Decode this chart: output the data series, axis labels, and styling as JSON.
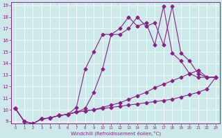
{
  "xlabel": "Windchill (Refroidissement éolien,°C)",
  "bg_color": "#cce8e8",
  "line_color": "#882288",
  "grid_color": "#ffffff",
  "xmin": 0,
  "xmax": 23,
  "ymin": 9,
  "ymax": 19,
  "xticks": [
    0,
    1,
    2,
    3,
    4,
    5,
    6,
    7,
    8,
    9,
    10,
    11,
    12,
    13,
    14,
    15,
    16,
    17,
    18,
    19,
    20,
    21,
    22,
    23
  ],
  "yticks": [
    9,
    10,
    11,
    12,
    13,
    14,
    15,
    16,
    17,
    18,
    19
  ],
  "line1_x": [
    0,
    1,
    2,
    3,
    4,
    5,
    6,
    7,
    8,
    9,
    10,
    11,
    12,
    13,
    14,
    15,
    16,
    17,
    18,
    19,
    20,
    21,
    22,
    23
  ],
  "line1_y": [
    10.1,
    9.0,
    8.8,
    9.2,
    9.3,
    9.5,
    9.6,
    9.8,
    9.9,
    10.0,
    10.1,
    10.2,
    10.3,
    10.4,
    10.5,
    10.6,
    10.7,
    10.8,
    10.9,
    11.1,
    11.3,
    11.5,
    11.8,
    12.8
  ],
  "line2_x": [
    0,
    1,
    2,
    3,
    4,
    5,
    6,
    7,
    8,
    9,
    10,
    11,
    12,
    13,
    14,
    15,
    16,
    17,
    18,
    19,
    20,
    21,
    22,
    23
  ],
  "line2_y": [
    10.1,
    9.0,
    8.8,
    9.2,
    9.3,
    9.5,
    9.6,
    9.8,
    9.9,
    10.0,
    10.2,
    10.4,
    10.6,
    10.9,
    11.2,
    11.5,
    11.9,
    12.2,
    12.5,
    12.8,
    13.1,
    13.4,
    12.8,
    12.8
  ],
  "line3_x": [
    0,
    1,
    2,
    3,
    4,
    5,
    6,
    7,
    8,
    9,
    10,
    11,
    12,
    13,
    14,
    15,
    16,
    17,
    18,
    19,
    20,
    21,
    22,
    23
  ],
  "line3_y": [
    10.1,
    9.0,
    8.8,
    9.2,
    9.3,
    9.5,
    9.6,
    9.8,
    10.1,
    11.5,
    13.5,
    16.5,
    16.5,
    17.0,
    18.0,
    17.2,
    17.5,
    15.6,
    18.9,
    14.9,
    14.2,
    13.1,
    12.8,
    12.8
  ],
  "line4_x": [
    0,
    1,
    2,
    3,
    4,
    5,
    6,
    7,
    8,
    9,
    10,
    11,
    12,
    13,
    14,
    15,
    16,
    17,
    18,
    19,
    20,
    21,
    22,
    23
  ],
  "line4_y": [
    10.1,
    9.0,
    8.8,
    9.2,
    9.3,
    9.5,
    9.6,
    10.2,
    13.5,
    15.0,
    16.5,
    16.5,
    17.0,
    18.0,
    17.2,
    17.5,
    15.6,
    18.9,
    14.9,
    14.2,
    13.1,
    12.8,
    12.8,
    12.8
  ]
}
